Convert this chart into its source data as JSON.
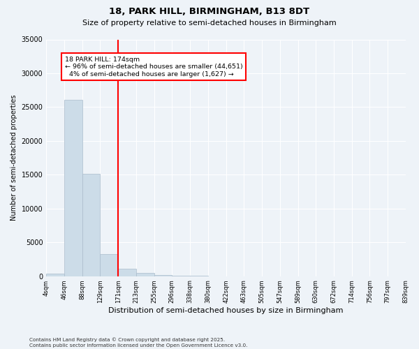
{
  "title1": "18, PARK HILL, BIRMINGHAM, B13 8DT",
  "title2": "Size of property relative to semi-detached houses in Birmingham",
  "xlabel": "Distribution of semi-detached houses by size in Birmingham",
  "ylabel": "Number of semi-detached properties",
  "bar_color": "#ccdce8",
  "bar_edge_color": "#aabccc",
  "vline_color": "red",
  "vline_x": 171,
  "property_size": 174,
  "pct_smaller": 96,
  "count_smaller": 44651,
  "pct_larger": 4,
  "count_larger": 1627,
  "annotation_label": "18 PARK HILL: 174sqm",
  "bin_edges": [
    4,
    46,
    88,
    129,
    171,
    213,
    255,
    296,
    338,
    380,
    422,
    463,
    505,
    547,
    589,
    630,
    672,
    714,
    756,
    797,
    839
  ],
  "bin_labels": [
    "4sqm",
    "46sqm",
    "88sqm",
    "129sqm",
    "171sqm",
    "213sqm",
    "255sqm",
    "296sqm",
    "338sqm",
    "380sqm",
    "422sqm",
    "463sqm",
    "505sqm",
    "547sqm",
    "589sqm",
    "630sqm",
    "672sqm",
    "714sqm",
    "756sqm",
    "797sqm",
    "839sqm"
  ],
  "bar_heights": [
    400,
    26100,
    15100,
    3300,
    1050,
    450,
    150,
    50,
    20,
    5,
    2,
    1,
    0,
    0,
    0,
    0,
    0,
    0,
    0,
    0
  ],
  "ylim": [
    0,
    35000
  ],
  "yticks": [
    0,
    5000,
    10000,
    15000,
    20000,
    25000,
    30000,
    35000
  ],
  "background_color": "#eef3f8",
  "plot_bg_color": "#eef3f8",
  "grid_color": "#ffffff",
  "footnote": "Contains HM Land Registry data © Crown copyright and database right 2025.\nContains public sector information licensed under the Open Government Licence v3.0."
}
